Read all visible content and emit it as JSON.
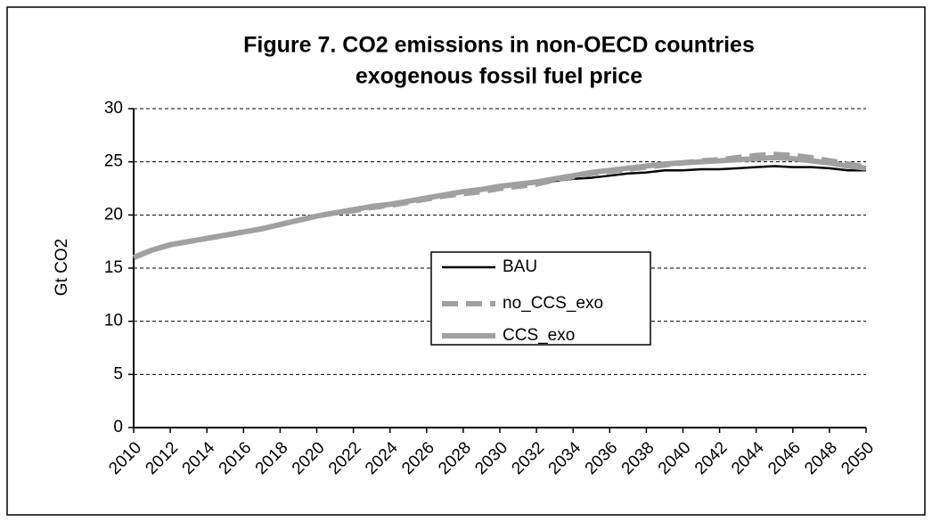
{
  "chart_data": {
    "type": "line",
    "title": [
      "Figure 7. CO2 emissions in non-OECD countries",
      "exogenous fossil fuel price"
    ],
    "y_label": "Gt CO2",
    "x": [
      2010,
      2011,
      2012,
      2013,
      2014,
      2015,
      2016,
      2017,
      2018,
      2019,
      2020,
      2021,
      2022,
      2023,
      2024,
      2025,
      2026,
      2027,
      2028,
      2029,
      2030,
      2031,
      2032,
      2033,
      2034,
      2035,
      2036,
      2037,
      2038,
      2039,
      2040,
      2041,
      2042,
      2043,
      2044,
      2045,
      2046,
      2047,
      2048,
      2049,
      2050
    ],
    "series": [
      {
        "name": "BAU",
        "color": "#000000",
        "line_style": "solid",
        "width": 2.5,
        "values": [
          16.0,
          16.7,
          17.2,
          17.5,
          17.8,
          18.1,
          18.4,
          18.7,
          19.0,
          19.4,
          19.8,
          20.1,
          20.4,
          20.7,
          20.9,
          21.2,
          21.5,
          21.8,
          22.1,
          22.3,
          22.6,
          22.8,
          23.0,
          23.2,
          23.4,
          23.5,
          23.7,
          23.9,
          24.0,
          24.2,
          24.2,
          24.3,
          24.3,
          24.4,
          24.5,
          24.6,
          24.5,
          24.5,
          24.4,
          24.2,
          24.2
        ]
      },
      {
        "name": "no_CCS_exo",
        "color": "#a0a0a0",
        "line_style": "dashed",
        "width": 6,
        "values": [
          16.0,
          16.7,
          17.2,
          17.5,
          17.8,
          18.1,
          18.4,
          18.7,
          19.1,
          19.5,
          19.9,
          20.2,
          20.4,
          20.7,
          20.9,
          21.2,
          21.5,
          21.8,
          22.0,
          22.2,
          22.5,
          22.7,
          22.9,
          23.3,
          23.6,
          23.9,
          24.1,
          24.3,
          24.5,
          24.7,
          24.9,
          25.1,
          25.2,
          25.4,
          25.6,
          25.7,
          25.6,
          25.4,
          25.1,
          24.8,
          24.5
        ]
      },
      {
        "name": "CCS_exo",
        "color": "#a0a0a0",
        "line_style": "solid",
        "width": 6,
        "values": [
          16.0,
          16.7,
          17.2,
          17.5,
          17.8,
          18.1,
          18.4,
          18.7,
          19.1,
          19.5,
          19.9,
          20.2,
          20.5,
          20.8,
          21.0,
          21.3,
          21.6,
          21.9,
          22.2,
          22.4,
          22.7,
          22.9,
          23.1,
          23.4,
          23.7,
          24.0,
          24.2,
          24.4,
          24.6,
          24.8,
          24.9,
          25.0,
          25.1,
          25.2,
          25.3,
          25.4,
          25.3,
          25.1,
          24.9,
          24.6,
          24.4
        ]
      }
    ],
    "xlim": [
      2010,
      2050
    ],
    "xticks": [
      2010,
      2012,
      2014,
      2016,
      2018,
      2020,
      2022,
      2024,
      2026,
      2028,
      2030,
      2032,
      2034,
      2036,
      2038,
      2040,
      2042,
      2044,
      2046,
      2048,
      2050
    ],
    "ylim": [
      0,
      30
    ],
    "yticks": [
      0,
      5,
      10,
      15,
      20,
      25,
      30
    ],
    "grid": true,
    "legend": "center"
  }
}
